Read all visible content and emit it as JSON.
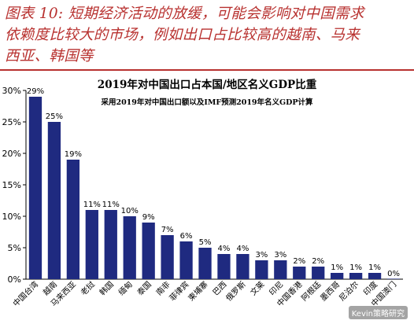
{
  "caption": {
    "line1": "图表 10: 短期经济活动的放缓，可能会影响对中国需求",
    "line2": "依赖度比较大的市场，例如出口占比较高的越南、马来",
    "line3": "西亚、韩国等"
  },
  "watermark": "Kevin策略研究",
  "colors": {
    "bar": "#1f2a80",
    "caption": "#b8312f",
    "axis": "#000000"
  },
  "chart_data": {
    "type": "bar",
    "title": "2019年对中国出口占本国/地区名义GDP比重",
    "subtitle": "采用2019年对中国出口额以及IMF预测2019年名义GDP计算",
    "categories": [
      "中国台湾",
      "越南",
      "马来西亚",
      "老挝",
      "韩国",
      "缅甸",
      "泰国",
      "南非",
      "菲律宾",
      "柬埔寨",
      "巴西",
      "俄罗斯",
      "文莱",
      "印尼",
      "中国香港",
      "阿根廷",
      "墨西哥",
      "尼泊尔",
      "印度",
      "中国澳门"
    ],
    "values": [
      29,
      25,
      19,
      11,
      11,
      10,
      9,
      7,
      6,
      5,
      4,
      4,
      3,
      3,
      2,
      2,
      1,
      1,
      1,
      0
    ],
    "data_labels": [
      "29%",
      "25%",
      "19%",
      "11%",
      "11%",
      "10%",
      "9%",
      "7%",
      "6%",
      "5%",
      "4%",
      "4%",
      "3%",
      "3%",
      "2%",
      "2%",
      "1%",
      "1%",
      "1%",
      "0%"
    ],
    "ylim": [
      0,
      30
    ],
    "yticks": [
      0,
      5,
      10,
      15,
      20,
      25,
      30
    ],
    "ytick_labels": [
      "0%",
      "5%",
      "10%",
      "15%",
      "20%",
      "25%",
      "30%"
    ],
    "xlabel": "",
    "ylabel": "",
    "grid": false
  }
}
